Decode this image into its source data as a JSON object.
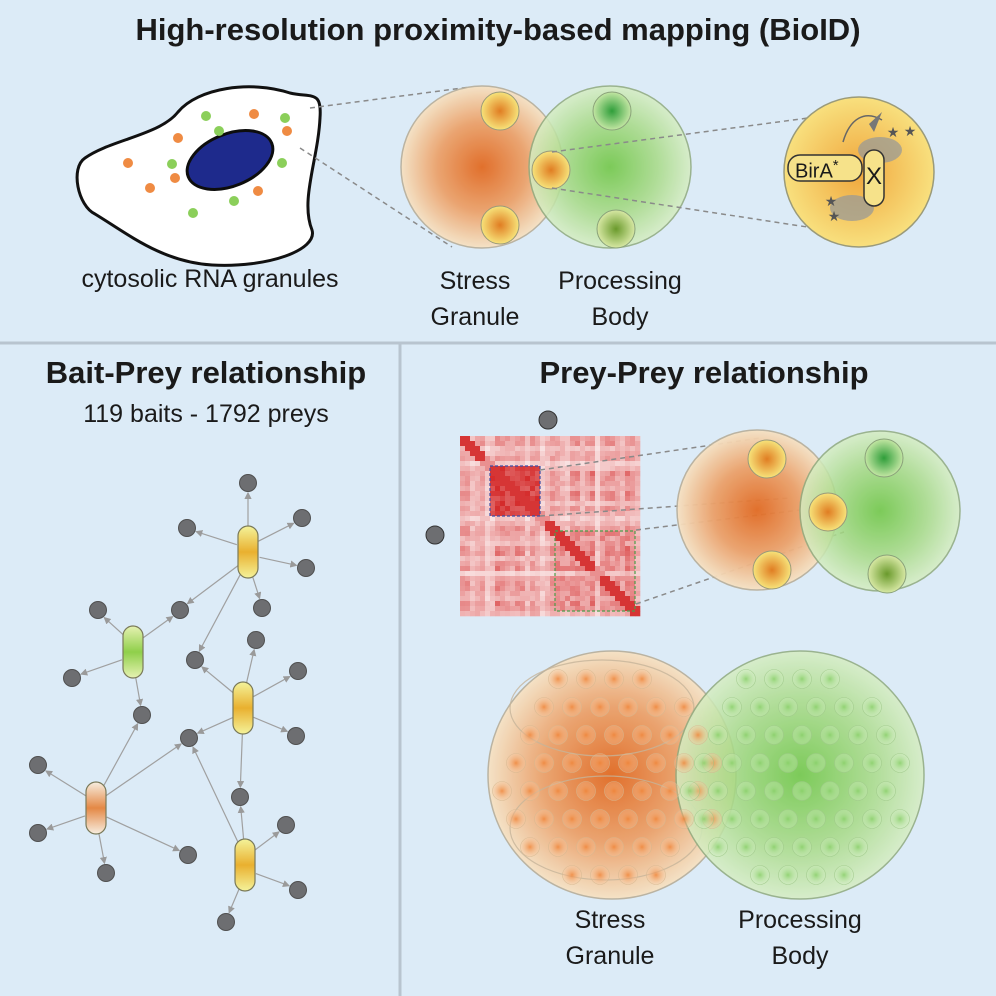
{
  "header": {
    "title": "High-resolution proximity-based mapping (BioID)"
  },
  "cell": {
    "caption": "cytosolic RNA granules"
  },
  "granules": {
    "stress_top": [
      "Stress",
      "Granule"
    ],
    "pbody_top": [
      "Processing",
      "Body"
    ],
    "stress_bottom": [
      "Stress",
      "Granule"
    ],
    "pbody_bottom": [
      "Processing",
      "Body"
    ]
  },
  "biotin": {
    "enzyme": "BirA",
    "asterisk": "*",
    "bait": "X"
  },
  "left_panel": {
    "title": "Bait-Prey relationship",
    "subtitle": "119 baits - 1792 preys"
  },
  "right_panel": {
    "title": "Prey-Prey relationship"
  },
  "colors": {
    "background": "#dcebf7",
    "stress_orange": "#e0762e",
    "pbody_green": "#6cc24a",
    "nucleus": "#1e2a8c",
    "heatmap_red": "#d42a2a",
    "node_gray": "#6d6e71"
  }
}
